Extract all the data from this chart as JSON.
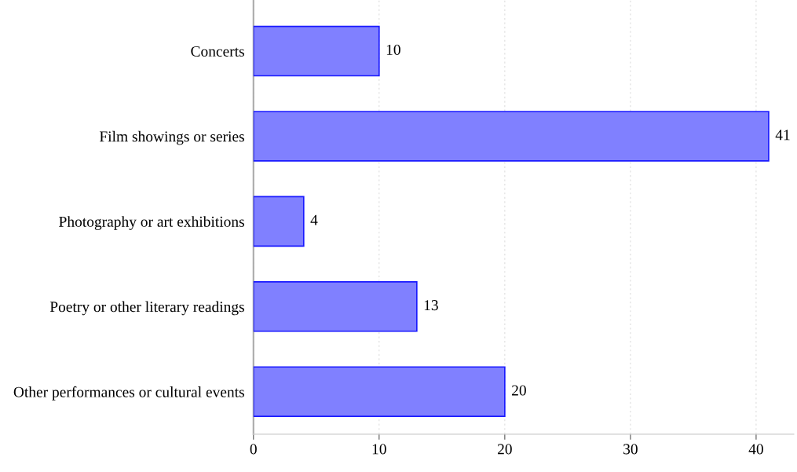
{
  "chart_data": {
    "type": "bar",
    "orientation": "horizontal",
    "categories": [
      "Concerts",
      "Film showings or series",
      "Photography or art exhibitions",
      "Poetry or other literary readings",
      "Other performances or cultural events"
    ],
    "values": [
      10,
      41,
      4,
      13,
      20
    ],
    "color": "#8080ff",
    "xlim": [
      0,
      43
    ],
    "xticks": [
      0,
      10,
      20,
      30,
      40
    ],
    "grid": "x",
    "data_labels": true
  }
}
